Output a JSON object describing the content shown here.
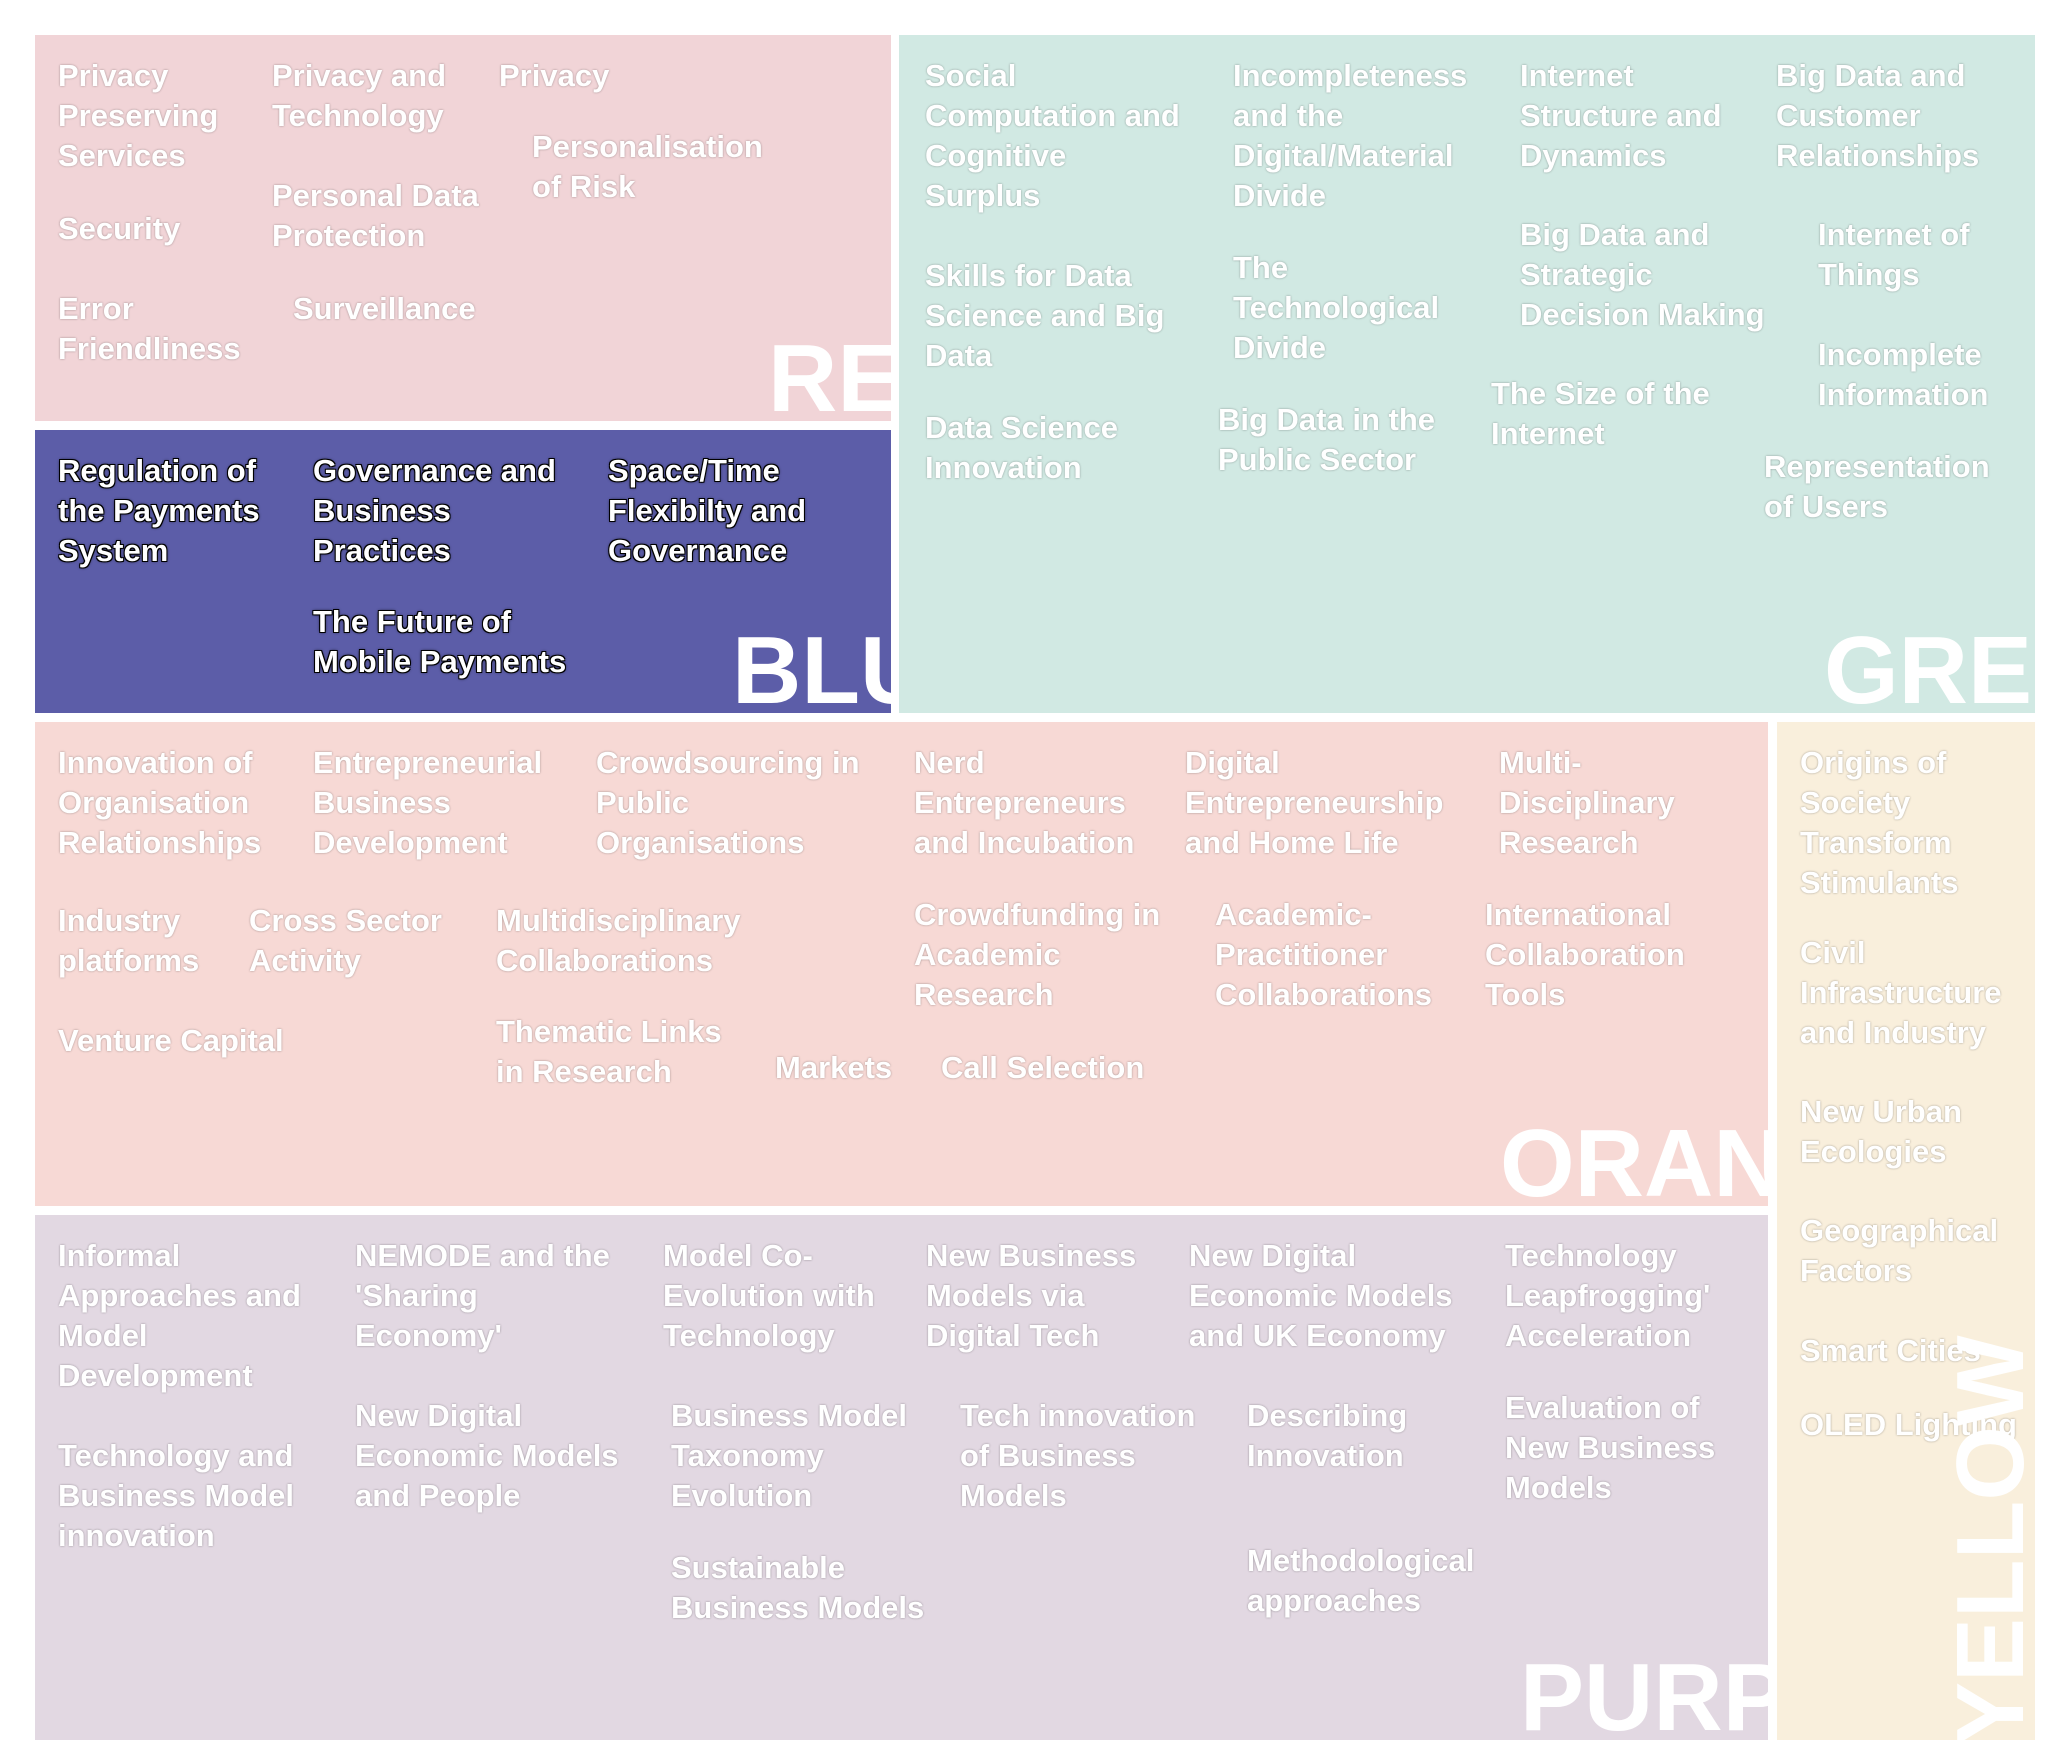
{
  "red": {
    "label": "RED",
    "topics": [
      "Privacy\nPreserving\nServices",
      "Security",
      "Error\nFriendliness",
      "Privacy and\nTechnology",
      "Personal Data\nProtection",
      "Surveillance",
      "Privacy",
      "Personalisation\nof Risk"
    ]
  },
  "blue": {
    "label": "BLUE",
    "topics": [
      "Regulation of\nthe Payments\nSystem",
      "Governance and\nBusiness\nPractices",
      "The Future of\nMobile Payments",
      "Space/Time\nFlexibilty and\nGovernance"
    ]
  },
  "green": {
    "label": "GREEN",
    "topics": [
      "Social\nComputation and\nCognitive\nSurplus",
      "Skills for Data\nScience and Big\nData",
      "Data Science\nInnovation",
      "Incompleteness\nand the\nDigital/Material\nDivide",
      "The\nTechnological\nDivide",
      "Big Data in the\nPublic Sector",
      "Internet\nStructure and\nDynamics",
      "Big Data and\nStrategic\nDecision Making",
      "The Size of the\nInternet",
      "Big Data and\nCustomer\nRelationships",
      "Internet of\nThings",
      "Incomplete\nInformation",
      "Representation\nof Users"
    ]
  },
  "orange": {
    "label": "ORANGE",
    "topics": [
      "Innovation of\nOrganisation\nRelationships",
      "Entrepreneurial\nBusiness\nDevelopment",
      "Crowdsourcing in\nPublic\nOrganisations",
      "Nerd\nEntrepreneurs\nand Incubation",
      "Digital\nEntrepreneurship\nand Home Life",
      "Multi-\nDisciplinary\nResearch",
      "Industry\nplatforms",
      "Cross Sector\nActivity",
      "Multidisciplinary\nCollaborations",
      "Crowdfunding in\nAcademic\nResearch",
      "Academic-\nPractitioner\nCollaborations",
      "International\nCollaboration\nTools",
      "Venture Capital",
      "Thematic Links\nin Research",
      "Markets",
      "Call Selection"
    ]
  },
  "yellow": {
    "label": "YELLOW",
    "topics": [
      "Origins of\nSociety\nTransform\nStimulants",
      "Civil\nInfrastructure\nand Industry",
      "New Urban\nEcologies",
      "Geographical\nFactors",
      "Smart Cities",
      "OLED Lighting"
    ]
  },
  "purple": {
    "label": "PURPLE",
    "topics": [
      "Informal\nApproaches and\nModel\nDevelopment",
      "Technology and\nBusiness Model\ninnovation",
      "NEMODE and the\n'Sharing\nEconomy'",
      "New Digital\nEconomic Models\nand People",
      "Model Co-\nEvolution with\nTechnology",
      "Business Model\nTaxonomy\nEvolution",
      "Sustainable\nBusiness Models",
      "New Business\nModels via\nDigital Tech",
      "Tech innovation\nof Business\nModels",
      "New Digital\nEconomic Models\nand UK Economy",
      "Describing\nInnovation",
      "Methodological\napproaches",
      "Technology\nLeapfrogging'\nAcceleration",
      "Evaluation of\nNew Business\nModels"
    ]
  }
}
